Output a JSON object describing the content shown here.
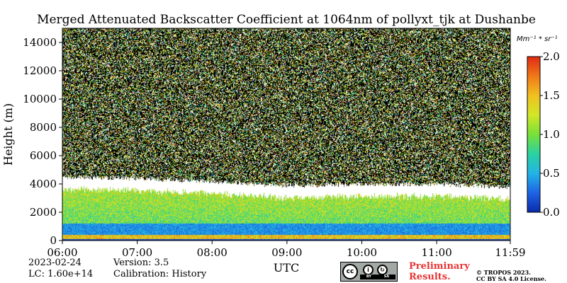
{
  "chart_data": {
    "type": "heatmap",
    "title": "Merged Attenuated Backscatter Coefficient at 1064nm of pollyxt_tjk at Dushanbe",
    "xlabel": "UTC",
    "ylabel": "Height (m)",
    "x_range": [
      "06:00",
      "11:59"
    ],
    "x_ticks": [
      "06:00",
      "07:00",
      "08:00",
      "09:00",
      "10:00",
      "11:00",
      "11:59"
    ],
    "ylim": [
      0,
      15000
    ],
    "y_ticks": [
      0,
      2000,
      4000,
      6000,
      8000,
      10000,
      12000,
      14000
    ],
    "colorbar": {
      "unit_label": "Mm⁻¹ * sr⁻¹",
      "range": [
        0.0,
        2.0
      ],
      "ticks": [
        "0.0",
        "0.5",
        "1.0",
        "1.5",
        "2.0"
      ],
      "colormap": [
        "#0a2aaa",
        "#1e64e6",
        "#22b4e6",
        "#2ad2a0",
        "#78e038",
        "#d2e628",
        "#f0c020",
        "#f07818",
        "#e02a14"
      ]
    },
    "features": [
      {
        "name": "aerosol layer top (approx. m)",
        "time": [
          "06:00",
          "07:00",
          "08:00",
          "09:00",
          "10:00",
          "11:00",
          "11:59"
        ],
        "value": [
          4500,
          4400,
          4200,
          3900,
          4000,
          4000,
          3800
        ]
      },
      {
        "name": "near-surface high backscatter (approx. m)",
        "time": [
          "06:00",
          "11:59"
        ],
        "value": [
          300,
          300
        ]
      }
    ]
  },
  "footer": {
    "date": "2023-02-24",
    "lc": "LC: 1.60e+14",
    "version": "Version: 3.5",
    "calibration": "Calibration: History",
    "preliminary_line1": "Preliminary",
    "preliminary_line2": "Results.",
    "copyright_line1": "© TROPOS 2023.",
    "copyright_line2": "CC BY SA 4.0 License.",
    "cc_by": "BY",
    "cc_sa": "SA"
  },
  "colors": {
    "background_noise": "#000000",
    "cloud": "#ffffff",
    "preliminary": "#e83434"
  }
}
